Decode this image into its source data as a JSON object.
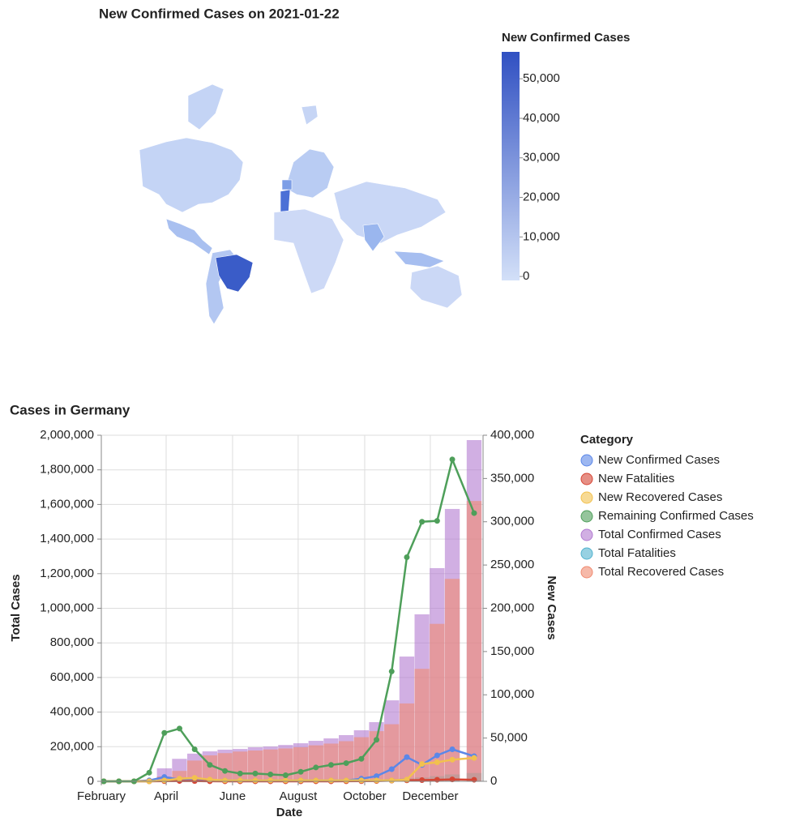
{
  "chart_data": [
    {
      "type": "choropleth",
      "title": "New Confirmed Cases on 2021-01-22",
      "colorbar": {
        "title": "New Confirmed Cases",
        "clim": [
          -1000,
          56800
        ],
        "colors": [
          "#d3e0f8",
          "#3050c2"
        ],
        "ticks": [
          0,
          {
            "value": 10000,
            "label": "10,000"
          },
          {
            "value": 20000,
            "label": "20,000"
          },
          {
            "value": 30000,
            "label": "30,000"
          },
          {
            "value": 40000,
            "label": "40,000"
          },
          {
            "value": 50000,
            "label": "50,000"
          }
        ]
      }
    },
    {
      "type": "bar-line",
      "title": "Cases in Germany",
      "xlabel": "Date",
      "ylabel": "Total Cases",
      "y2label": "New Cases",
      "x": [
        0,
        1,
        2,
        3,
        4,
        5,
        6,
        7,
        8,
        9,
        10,
        11,
        12,
        13,
        14,
        15,
        16,
        17,
        18,
        19,
        20,
        21,
        22,
        23,
        24.44
      ],
      "xlim": [
        -0.16,
        25.03
      ],
      "xticks": [
        {
          "value": -0.16,
          "label": "February"
        },
        {
          "value": 4.12,
          "label": "April"
        },
        {
          "value": 8.5,
          "label": "June"
        },
        {
          "value": 12.83,
          "label": "August"
        },
        {
          "value": 17.22,
          "label": "October"
        },
        {
          "value": 21.55,
          "label": "December"
        }
      ],
      "ylim": [
        0,
        2000000
      ],
      "yticks": [
        0,
        {
          "value": 200000,
          "label": "200,000"
        },
        {
          "value": 400000,
          "label": "400,000"
        },
        {
          "value": 600000,
          "label": "600,000"
        },
        {
          "value": 800000,
          "label": "800,000"
        },
        {
          "value": 1000000,
          "label": "1,000,000"
        },
        {
          "value": 1200000,
          "label": "1,200,000"
        },
        {
          "value": 1400000,
          "label": "1,400,000"
        },
        {
          "value": 1600000,
          "label": "1,600,000"
        },
        {
          "value": 1800000,
          "label": "1,800,000"
        },
        {
          "value": 2000000,
          "label": "2,000,000"
        }
      ],
      "y2lim": [
        0,
        400000
      ],
      "y2ticks": [
        0,
        {
          "value": 50000,
          "label": "50,000"
        },
        {
          "value": 100000,
          "label": "100,000"
        },
        {
          "value": 150000,
          "label": "150,000"
        },
        {
          "value": 200000,
          "label": "200,000"
        },
        {
          "value": 250000,
          "label": "250,000"
        },
        {
          "value": 300000,
          "label": "300,000"
        },
        {
          "value": 350000,
          "label": "350,000"
        },
        {
          "value": 400000,
          "label": "400,000"
        }
      ],
      "grid": true,
      "legend_title": "Category",
      "series": [
        {
          "name": "New Confirmed Cases",
          "color": "#5b87e8",
          "mark": "line",
          "axis": "y2",
          "values": [
            0,
            0,
            0,
            1000,
            5000,
            2000,
            1000,
            1000,
            1000,
            1000,
            1000,
            1000,
            1000,
            1000,
            1000,
            1000,
            1000,
            3000,
            6000,
            14000,
            28000,
            19000,
            30000,
            37000,
            29000
          ]
        },
        {
          "name": "New Fatalities",
          "color": "#d64534",
          "mark": "line",
          "axis": "y2",
          "values": [
            0,
            0,
            0,
            0,
            200,
            400,
            300,
            100,
            50,
            50,
            50,
            50,
            50,
            50,
            50,
            50,
            100,
            200,
            400,
            800,
            1200,
            1400,
            1800,
            2200,
            1800
          ]
        },
        {
          "name": "New Recovered Cases",
          "color": "#f2c14e",
          "mark": "line",
          "axis": "y2",
          "values": [
            0,
            0,
            0,
            0,
            1000,
            3000,
            4000,
            2000,
            1000,
            1000,
            1000,
            1000,
            1000,
            1000,
            1000,
            1000,
            1000,
            1000,
            1000,
            1000,
            2000,
            20000,
            22000,
            25000,
            27000
          ]
        },
        {
          "name": "Remaining Confirmed Cases",
          "color": "#4e9f5a",
          "mark": "line",
          "axis": "y2",
          "values": [
            0,
            0,
            0,
            10000,
            56000,
            61000,
            37000,
            19000,
            12000,
            9000,
            9000,
            8000,
            7000,
            11000,
            16000,
            19000,
            21000,
            26000,
            48000,
            127000,
            259000,
            300000,
            301000,
            372000,
            310000
          ]
        },
        {
          "name": "Total Confirmed Cases",
          "color": "#b27ad1",
          "mark": "bar",
          "axis": "y",
          "values": [
            0,
            0,
            0,
            5000,
            75000,
            130000,
            160000,
            173000,
            183000,
            187000,
            197000,
            201000,
            210000,
            220000,
            234000,
            248000,
            267000,
            295000,
            342000,
            468000,
            721000,
            965000,
            1232000,
            1574000,
            1972000
          ]
        },
        {
          "name": "Total Fatalities",
          "color": "#52b3cf",
          "mark": "bar",
          "axis": "y",
          "values": [
            0,
            0,
            0,
            0,
            1000,
            4000,
            7000,
            8000,
            8500,
            9000,
            9200,
            9300,
            9400,
            9500,
            9600,
            9700,
            9800,
            10000,
            11000,
            13000,
            17000,
            22000,
            30000,
            40000,
            48000
          ]
        },
        {
          "name": "Total Recovered Cases",
          "color": "#f08a70",
          "mark": "bar",
          "axis": "y",
          "values": [
            0,
            0,
            0,
            0,
            28000,
            60000,
            120000,
            150000,
            163000,
            172000,
            178000,
            184000,
            190000,
            197000,
            208000,
            218000,
            232000,
            255000,
            290000,
            330000,
            450000,
            650000,
            910000,
            1170000,
            1620000
          ]
        }
      ]
    }
  ]
}
